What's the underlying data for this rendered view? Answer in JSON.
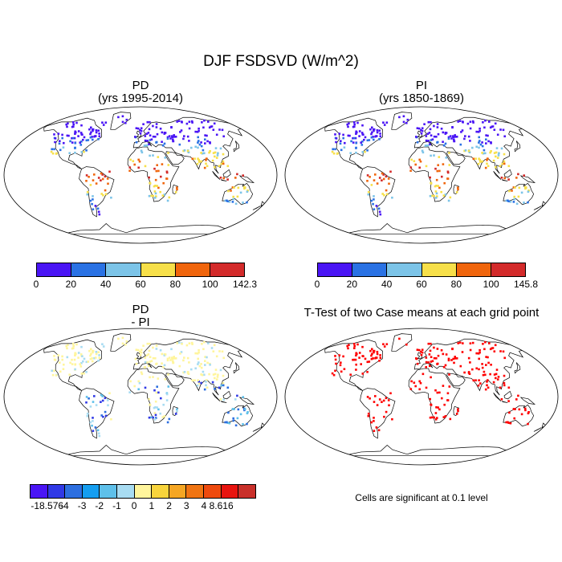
{
  "title": "DJF FSDSVD (W/m^2)",
  "panels": {
    "pd": {
      "title": "PD",
      "subtitle": "(yrs 1995-2014)"
    },
    "pi": {
      "title": "PI",
      "subtitle": "(yrs 1850-1869)"
    },
    "diff": {
      "title": "PD",
      "subtitle": "- PI"
    },
    "ttest": {
      "title": "T-Test of two Case means at each grid point",
      "note": "Cells are significant at 0.1 level"
    }
  },
  "colorbars": {
    "pd": {
      "colors": [
        "#4a15f5",
        "#2a72e4",
        "#7cc4e8",
        "#f7e04a",
        "#f0650c",
        "#d32a2a"
      ],
      "labels": [
        "0",
        "20",
        "40",
        "60",
        "80",
        "100",
        "142.3"
      ]
    },
    "pi": {
      "colors": [
        "#4a15f5",
        "#2a72e4",
        "#7cc4e8",
        "#f7e04a",
        "#f0650c",
        "#d32a2a"
      ],
      "labels": [
        "0",
        "20",
        "40",
        "60",
        "80",
        "100",
        "145.8"
      ]
    },
    "diff": {
      "colors": [
        "#4a15f5",
        "#3039e6",
        "#2d6fe0",
        "#159ef0",
        "#5ec0ea",
        "#a8dcf2",
        "#fff59c",
        "#f8d43c",
        "#f5a623",
        "#f07412",
        "#ee4a0e",
        "#e8140f",
        "#c9302a"
      ],
      "labels": [
        "-18.576",
        "-4",
        "-3",
        "-2",
        "-1",
        "0",
        "1",
        "2",
        "3",
        "4",
        "8.616"
      ]
    }
  },
  "ttest_color": "#ff0000"
}
